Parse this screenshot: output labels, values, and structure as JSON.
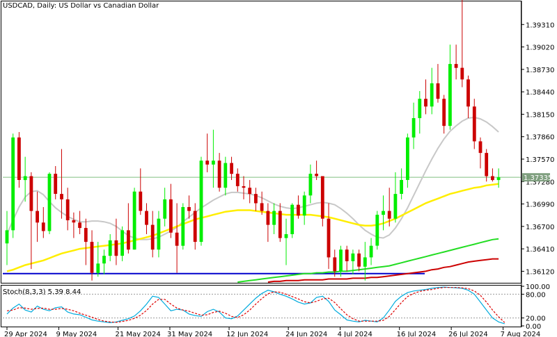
{
  "window": {
    "title": "USDCAD, Daily:  US Dollar vs Canadian Dollar",
    "symbol": "USDCAD",
    "timeframe": "Daily",
    "description": "US Dollar vs Canadian Dollar"
  },
  "main_pane": {
    "current_price_label": "1.37335",
    "price_axis_labels": [
      "1.39310",
      "1.39020",
      "1.38730",
      "1.38440",
      "1.38150",
      "1.37860",
      "1.37570",
      "1.37280",
      "1.36990",
      "1.36700",
      "1.36410",
      "1.36120"
    ]
  },
  "indicator_pane": {
    "title": "Stoch(8,3,3) 5.39 8.44",
    "axis_labels": [
      "100.00",
      "80.00",
      "20.00",
      "0.00"
    ]
  },
  "time_axis_labels": [
    "29 Apr 2024",
    "9 May 2024",
    "21 May 2024",
    "31 May 2024",
    "12 Jun 2024",
    "24 Jun 2024",
    "4 Jul 2024",
    "16 Jul 2024",
    "26 Jul 2024",
    "7 Aug 2024"
  ],
  "colors": {
    "bull": "#00ee00",
    "bear": "#cc0000",
    "ma_fast": "#c8c8c8",
    "ma_mid": "#ffee00",
    "ma_slow1": "#22dd22",
    "ma_slow2": "#cc0000",
    "support": "#0000cc",
    "current_line": "#7fbf7f",
    "stoch_main": "#00aadd",
    "stoch_signal": "#dd0000"
  },
  "chart_data": {
    "type": "candlestick",
    "price_range": [
      1.3598,
      1.396
    ],
    "support_level": 1.3609,
    "current_price": 1.37335,
    "candles": [
      {
        "o": 1.3648,
        "h": 1.369,
        "l": 1.362,
        "c": 1.3665
      },
      {
        "o": 1.3665,
        "h": 1.379,
        "l": 1.3655,
        "c": 1.3785
      },
      {
        "o": 1.3785,
        "h": 1.3792,
        "l": 1.372,
        "c": 1.373
      },
      {
        "o": 1.373,
        "h": 1.376,
        "l": 1.3702,
        "c": 1.3735
      },
      {
        "o": 1.3735,
        "h": 1.374,
        "l": 1.3615,
        "c": 1.369
      },
      {
        "o": 1.369,
        "h": 1.3715,
        "l": 1.365,
        "c": 1.3675
      },
      {
        "o": 1.3675,
        "h": 1.3695,
        "l": 1.3655,
        "c": 1.3664
      },
      {
        "o": 1.3664,
        "h": 1.374,
        "l": 1.366,
        "c": 1.3738
      },
      {
        "o": 1.3738,
        "h": 1.3748,
        "l": 1.3705,
        "c": 1.3712
      },
      {
        "o": 1.3712,
        "h": 1.377,
        "l": 1.368,
        "c": 1.3705
      },
      {
        "o": 1.3705,
        "h": 1.372,
        "l": 1.3665,
        "c": 1.3678
      },
      {
        "o": 1.3678,
        "h": 1.3688,
        "l": 1.3655,
        "c": 1.3675
      },
      {
        "o": 1.3675,
        "h": 1.369,
        "l": 1.366,
        "c": 1.3668
      },
      {
        "o": 1.3668,
        "h": 1.368,
        "l": 1.362,
        "c": 1.365
      },
      {
        "o": 1.365,
        "h": 1.3665,
        "l": 1.36,
        "c": 1.361
      },
      {
        "o": 1.361,
        "h": 1.365,
        "l": 1.3605,
        "c": 1.3622
      },
      {
        "o": 1.3622,
        "h": 1.364,
        "l": 1.3608,
        "c": 1.3632
      },
      {
        "o": 1.3632,
        "h": 1.366,
        "l": 1.3625,
        "c": 1.3652
      },
      {
        "o": 1.3652,
        "h": 1.368,
        "l": 1.362,
        "c": 1.3632
      },
      {
        "o": 1.3632,
        "h": 1.367,
        "l": 1.3625,
        "c": 1.3665
      },
      {
        "o": 1.3665,
        "h": 1.37,
        "l": 1.3635,
        "c": 1.364
      },
      {
        "o": 1.364,
        "h": 1.372,
        "l": 1.364,
        "c": 1.3715
      },
      {
        "o": 1.3715,
        "h": 1.3745,
        "l": 1.3685,
        "c": 1.369
      },
      {
        "o": 1.369,
        "h": 1.37,
        "l": 1.366,
        "c": 1.3672
      },
      {
        "o": 1.3672,
        "h": 1.369,
        "l": 1.363,
        "c": 1.364
      },
      {
        "o": 1.364,
        "h": 1.369,
        "l": 1.363,
        "c": 1.368
      },
      {
        "o": 1.368,
        "h": 1.372,
        "l": 1.367,
        "c": 1.3705
      },
      {
        "o": 1.3705,
        "h": 1.3725,
        "l": 1.3655,
        "c": 1.3662
      },
      {
        "o": 1.3662,
        "h": 1.37,
        "l": 1.361,
        "c": 1.3645
      },
      {
        "o": 1.3645,
        "h": 1.37,
        "l": 1.364,
        "c": 1.3695
      },
      {
        "o": 1.3695,
        "h": 1.371,
        "l": 1.368,
        "c": 1.369
      },
      {
        "o": 1.369,
        "h": 1.37,
        "l": 1.364,
        "c": 1.365
      },
      {
        "o": 1.365,
        "h": 1.376,
        "l": 1.3645,
        "c": 1.3755
      },
      {
        "o": 1.3755,
        "h": 1.379,
        "l": 1.374,
        "c": 1.375
      },
      {
        "o": 1.375,
        "h": 1.3795,
        "l": 1.372,
        "c": 1.3755
      },
      {
        "o": 1.3755,
        "h": 1.3765,
        "l": 1.3715,
        "c": 1.372
      },
      {
        "o": 1.372,
        "h": 1.376,
        "l": 1.371,
        "c": 1.3752
      },
      {
        "o": 1.3752,
        "h": 1.376,
        "l": 1.373,
        "c": 1.3738
      },
      {
        "o": 1.3738,
        "h": 1.3745,
        "l": 1.3715,
        "c": 1.3722
      },
      {
        "o": 1.3722,
        "h": 1.3735,
        "l": 1.3705,
        "c": 1.372
      },
      {
        "o": 1.372,
        "h": 1.373,
        "l": 1.37,
        "c": 1.3712
      },
      {
        "o": 1.3712,
        "h": 1.372,
        "l": 1.369,
        "c": 1.37
      },
      {
        "o": 1.37,
        "h": 1.3715,
        "l": 1.3685,
        "c": 1.369
      },
      {
        "o": 1.369,
        "h": 1.37,
        "l": 1.365,
        "c": 1.3672
      },
      {
        "o": 1.3672,
        "h": 1.37,
        "l": 1.366,
        "c": 1.369
      },
      {
        "o": 1.369,
        "h": 1.37,
        "l": 1.365,
        "c": 1.3655
      },
      {
        "o": 1.3655,
        "h": 1.368,
        "l": 1.362,
        "c": 1.366
      },
      {
        "o": 1.366,
        "h": 1.37,
        "l": 1.3655,
        "c": 1.3698
      },
      {
        "o": 1.3698,
        "h": 1.371,
        "l": 1.368,
        "c": 1.3684
      },
      {
        "o": 1.3684,
        "h": 1.3715,
        "l": 1.3672,
        "c": 1.371
      },
      {
        "o": 1.371,
        "h": 1.375,
        "l": 1.37,
        "c": 1.3738
      },
      {
        "o": 1.3738,
        "h": 1.3755,
        "l": 1.373,
        "c": 1.3735
      },
      {
        "o": 1.3735,
        "h": 1.3735,
        "l": 1.367,
        "c": 1.368
      },
      {
        "o": 1.368,
        "h": 1.37,
        "l": 1.3615,
        "c": 1.363
      },
      {
        "o": 1.363,
        "h": 1.364,
        "l": 1.3605,
        "c": 1.3612
      },
      {
        "o": 1.3612,
        "h": 1.3645,
        "l": 1.3605,
        "c": 1.364
      },
      {
        "o": 1.364,
        "h": 1.3645,
        "l": 1.3612,
        "c": 1.3625
      },
      {
        "o": 1.3625,
        "h": 1.364,
        "l": 1.3608,
        "c": 1.3635
      },
      {
        "o": 1.3635,
        "h": 1.364,
        "l": 1.3612,
        "c": 1.3618
      },
      {
        "o": 1.3618,
        "h": 1.365,
        "l": 1.36,
        "c": 1.363
      },
      {
        "o": 1.363,
        "h": 1.3655,
        "l": 1.362,
        "c": 1.3645
      },
      {
        "o": 1.3645,
        "h": 1.369,
        "l": 1.364,
        "c": 1.3685
      },
      {
        "o": 1.3685,
        "h": 1.371,
        "l": 1.3665,
        "c": 1.369
      },
      {
        "o": 1.369,
        "h": 1.372,
        "l": 1.367,
        "c": 1.368
      },
      {
        "o": 1.368,
        "h": 1.374,
        "l": 1.3675,
        "c": 1.3712
      },
      {
        "o": 1.3712,
        "h": 1.3745,
        "l": 1.3705,
        "c": 1.373
      },
      {
        "o": 1.373,
        "h": 1.379,
        "l": 1.372,
        "c": 1.3785
      },
      {
        "o": 1.3785,
        "h": 1.383,
        "l": 1.377,
        "c": 1.381
      },
      {
        "o": 1.381,
        "h": 1.3845,
        "l": 1.379,
        "c": 1.3835
      },
      {
        "o": 1.3835,
        "h": 1.386,
        "l": 1.3815,
        "c": 1.3825
      },
      {
        "o": 1.3825,
        "h": 1.3875,
        "l": 1.3815,
        "c": 1.3855
      },
      {
        "o": 1.3855,
        "h": 1.388,
        "l": 1.383,
        "c": 1.3835
      },
      {
        "o": 1.3835,
        "h": 1.384,
        "l": 1.379,
        "c": 1.38
      },
      {
        "o": 1.38,
        "h": 1.3905,
        "l": 1.3795,
        "c": 1.388
      },
      {
        "o": 1.388,
        "h": 1.3905,
        "l": 1.386,
        "c": 1.3875
      },
      {
        "o": 1.3875,
        "h": 1.3965,
        "l": 1.385,
        "c": 1.386
      },
      {
        "o": 1.386,
        "h": 1.3865,
        "l": 1.381,
        "c": 1.3825
      },
      {
        "o": 1.3825,
        "h": 1.3835,
        "l": 1.377,
        "c": 1.378
      },
      {
        "o": 1.378,
        "h": 1.3785,
        "l": 1.3745,
        "c": 1.3765
      },
      {
        "o": 1.3765,
        "h": 1.377,
        "l": 1.3728,
        "c": 1.3735
      },
      {
        "o": 1.3735,
        "h": 1.3745,
        "l": 1.3728,
        "c": 1.373
      },
      {
        "o": 1.373,
        "h": 1.3745,
        "l": 1.372,
        "c": 1.37335
      }
    ],
    "ma_fast": [
      1.366,
      1.3678,
      1.3695,
      1.3708,
      1.3715,
      1.3716,
      1.3711,
      1.3702,
      1.3694,
      1.3688,
      1.3683,
      1.3679,
      1.3676,
      1.3676,
      1.3677,
      1.3677,
      1.3676,
      1.3674,
      1.367,
      1.3664,
      1.3658,
      1.3655,
      1.3653,
      1.3653,
      1.3654,
      1.3656,
      1.366,
      1.3664,
      1.3669,
      1.3676,
      1.3682,
      1.3688,
      1.3694,
      1.3699,
      1.3704,
      1.3708,
      1.3712,
      1.3714,
      1.3714,
      1.3713,
      1.3712,
      1.371,
      1.3707,
      1.3703,
      1.3699,
      1.3696,
      1.3694,
      1.3693,
      1.3694,
      1.3696,
      1.3698,
      1.37,
      1.3701,
      1.37,
      1.3698,
      1.3693,
      1.3687,
      1.368,
      1.3672,
      1.3665,
      1.366,
      1.3656,
      1.3655,
      1.3659,
      1.3668,
      1.368,
      1.3694,
      1.371,
      1.3726,
      1.3742,
      1.3757,
      1.3771,
      1.3783,
      1.3793,
      1.38,
      1.3806,
      1.381,
      1.3811,
      1.3809,
      1.3805,
      1.3799,
      1.3792
    ],
    "ma_mid": [
      1.3612,
      1.3614,
      1.3617,
      1.362,
      1.3622,
      1.3624,
      1.3626,
      1.3629,
      1.3632,
      1.3635,
      1.3637,
      1.3639,
      1.3641,
      1.3642,
      1.3643,
      1.3644,
      1.3645,
      1.3646,
      1.3647,
      1.3648,
      1.365,
      1.3652,
      1.3654,
      1.3656,
      1.3658,
      1.3661,
      1.3664,
      1.3667,
      1.367,
      1.3673,
      1.3676,
      1.3679,
      1.3681,
      1.3683,
      1.3685,
      1.3687,
      1.3689,
      1.369,
      1.3691,
      1.3691,
      1.3691,
      1.369,
      1.3689,
      1.3688,
      1.3687,
      1.3686,
      1.3685,
      1.3685,
      1.3685,
      1.3685,
      1.3685,
      1.3684,
      1.3683,
      1.3682,
      1.368,
      1.3678,
      1.3676,
      1.3674,
      1.3672,
      1.3671,
      1.3671,
      1.3672,
      1.3674,
      1.3677,
      1.368,
      1.3684,
      1.3688,
      1.3692,
      1.3696,
      1.37,
      1.3703,
      1.3706,
      1.3709,
      1.3712,
      1.3714,
      1.3716,
      1.3718,
      1.372,
      1.3721,
      1.3723,
      1.3724,
      1.3725
    ],
    "ma_slow1_start_index": 38,
    "ma_slow1": [
      1.3598,
      1.3599,
      1.36,
      1.3601,
      1.3602,
      1.3603,
      1.3604,
      1.3605,
      1.3606,
      1.3607,
      1.3608,
      1.3609,
      1.3609,
      1.361,
      1.361,
      1.3611,
      1.3611,
      1.3612,
      1.3612,
      1.3613,
      1.3614,
      1.3615,
      1.3616,
      1.3617,
      1.3618,
      1.3619,
      1.3621,
      1.3623,
      1.3625,
      1.3627,
      1.3629,
      1.3631,
      1.3633,
      1.3635,
      1.3637,
      1.3639,
      1.3641,
      1.3643,
      1.3645,
      1.3647,
      1.3649,
      1.3651,
      1.3653,
      1.3654
    ],
    "ma_slow2_start_index": 43,
    "ma_slow2": [
      1.3598,
      1.3599,
      1.3599,
      1.36,
      1.36,
      1.36,
      1.3601,
      1.3601,
      1.3601,
      1.3601,
      1.3602,
      1.3602,
      1.3602,
      1.3602,
      1.3603,
      1.3603,
      1.3603,
      1.3604,
      1.3604,
      1.3605,
      1.3606,
      1.3607,
      1.3608,
      1.3609,
      1.361,
      1.3611,
      1.3612,
      1.3614,
      1.3615,
      1.3617,
      1.3618,
      1.362,
      1.3622,
      1.3624,
      1.3625,
      1.3626,
      1.3627,
      1.3628,
      1.3628
    ],
    "stoch_main": [
      30,
      45,
      55,
      40,
      35,
      50,
      42,
      38,
      46,
      48,
      35,
      30,
      28,
      22,
      15,
      12,
      10,
      8,
      10,
      14,
      18,
      25,
      38,
      55,
      75,
      72,
      55,
      38,
      42,
      40,
      30,
      26,
      24,
      36,
      42,
      35,
      20,
      18,
      25,
      40,
      55,
      70,
      82,
      90,
      86,
      80,
      75,
      68,
      60,
      55,
      58,
      72,
      75,
      62,
      40,
      28,
      15,
      12,
      10,
      14,
      12,
      10,
      20,
      40,
      62,
      75,
      84,
      88,
      90,
      92,
      95,
      97,
      98,
      97,
      96,
      95,
      90,
      80,
      60,
      40,
      20,
      10,
      5.39
    ],
    "stoch_signal": [
      38,
      40,
      46,
      45,
      42,
      44,
      45,
      42,
      42,
      44,
      42,
      38,
      32,
      27,
      22,
      16,
      12,
      10,
      9,
      11,
      14,
      19,
      27,
      39,
      55,
      67,
      67,
      55,
      45,
      40,
      37,
      32,
      27,
      28,
      34,
      37,
      32,
      24,
      21,
      28,
      40,
      55,
      69,
      81,
      86,
      85,
      80,
      74,
      68,
      61,
      58,
      62,
      68,
      70,
      59,
      43,
      28,
      18,
      12,
      12,
      12,
      12,
      14,
      24,
      41,
      59,
      74,
      82,
      87,
      90,
      92,
      95,
      97,
      97,
      97,
      96,
      94,
      88,
      77,
      60,
      40,
      23,
      8.44
    ]
  }
}
